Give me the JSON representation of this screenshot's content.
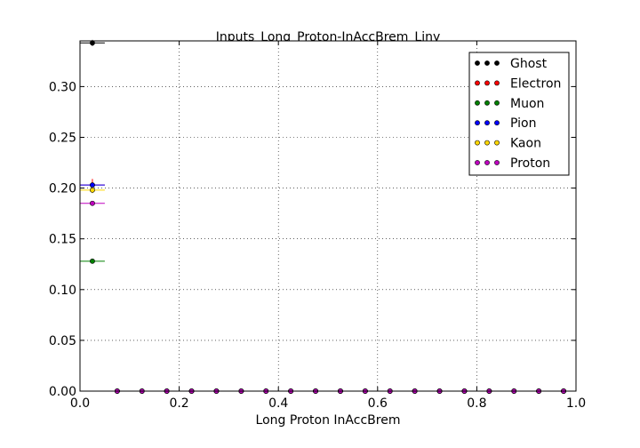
{
  "chart_data": {
    "type": "scatter",
    "title": "Inputs_Long_Proton-InAccBrem_Liny",
    "xlabel": "Long Proton InAccBrem",
    "ylabel": "",
    "xlim": [
      0.0,
      1.0
    ],
    "ylim": [
      0.0,
      0.345
    ],
    "x_ticks": [
      "0.0",
      "0.2",
      "0.4",
      "0.6",
      "0.8",
      "1.0"
    ],
    "y_ticks": [
      "0.00",
      "0.05",
      "0.10",
      "0.15",
      "0.20",
      "0.25",
      "0.30"
    ],
    "x_tick_values": [
      0.0,
      0.2,
      0.4,
      0.6,
      0.8,
      1.0
    ],
    "y_tick_values": [
      0.0,
      0.05,
      0.1,
      0.15,
      0.2,
      0.25,
      0.3
    ],
    "grid": true,
    "legend_position": "top-right",
    "bin_half_width": 0.025,
    "x": [
      0.025,
      0.075,
      0.125,
      0.175,
      0.225,
      0.275,
      0.325,
      0.375,
      0.425,
      0.475,
      0.525,
      0.575,
      0.625,
      0.675,
      0.725,
      0.775,
      0.825,
      0.875,
      0.925,
      0.975
    ],
    "series": [
      {
        "name": "Ghost",
        "color": "#000000",
        "values": [
          0.343,
          0,
          0,
          0,
          0,
          0,
          0,
          0,
          0,
          0,
          0,
          0,
          0,
          0,
          0,
          0,
          0,
          0,
          0,
          0
        ],
        "yerr": [
          0.003,
          0,
          0,
          0,
          0,
          0,
          0,
          0,
          0,
          0,
          0,
          0,
          0,
          0,
          0,
          0,
          0,
          0,
          0,
          0
        ]
      },
      {
        "name": "Electron",
        "color": "#ff0000",
        "values": [
          0.203,
          0,
          0,
          0,
          0,
          0,
          0,
          0,
          0,
          0,
          0,
          0,
          0,
          0,
          0,
          0,
          0,
          0,
          0,
          0
        ],
        "yerr": [
          0.006,
          0,
          0,
          0,
          0,
          0,
          0,
          0,
          0,
          0,
          0,
          0,
          0,
          0,
          0,
          0,
          0,
          0,
          0,
          0
        ]
      },
      {
        "name": "Muon",
        "color": "#008000",
        "values": [
          0.128,
          0,
          0,
          0,
          0,
          0,
          0,
          0,
          0,
          0,
          0,
          0,
          0,
          0,
          0,
          0,
          0,
          0,
          0,
          0
        ],
        "yerr": [
          0.002,
          0,
          0,
          0,
          0,
          0,
          0,
          0,
          0,
          0,
          0,
          0,
          0,
          0,
          0,
          0,
          0,
          0,
          0,
          0
        ]
      },
      {
        "name": "Pion",
        "color": "#0000ff",
        "values": [
          0.203,
          0,
          0,
          0,
          0,
          0,
          0,
          0,
          0,
          0,
          0,
          0,
          0,
          0,
          0,
          0,
          0,
          0,
          0,
          0
        ],
        "yerr": [
          0.002,
          0,
          0,
          0,
          0,
          0,
          0,
          0,
          0,
          0,
          0,
          0,
          0,
          0,
          0,
          0,
          0,
          0,
          0,
          0
        ]
      },
      {
        "name": "Kaon",
        "color": "#ffd700",
        "values": [
          0.198,
          0,
          0,
          0,
          0,
          0,
          0,
          0,
          0,
          0,
          0,
          0,
          0,
          0,
          0,
          0,
          0,
          0,
          0,
          0
        ],
        "yerr": [
          0.003,
          0,
          0,
          0,
          0,
          0,
          0,
          0,
          0,
          0,
          0,
          0,
          0,
          0,
          0,
          0,
          0,
          0,
          0,
          0
        ]
      },
      {
        "name": "Proton",
        "color": "#bf00bf",
        "values": [
          0.185,
          0,
          0,
          0,
          0,
          0,
          0,
          0,
          0,
          0,
          0,
          0,
          0,
          0,
          0,
          0,
          0,
          0,
          0,
          0
        ],
        "yerr": [
          0.002,
          0,
          0,
          0,
          0,
          0,
          0,
          0,
          0,
          0,
          0,
          0,
          0,
          0,
          0,
          0,
          0,
          0,
          0,
          0
        ]
      }
    ]
  }
}
